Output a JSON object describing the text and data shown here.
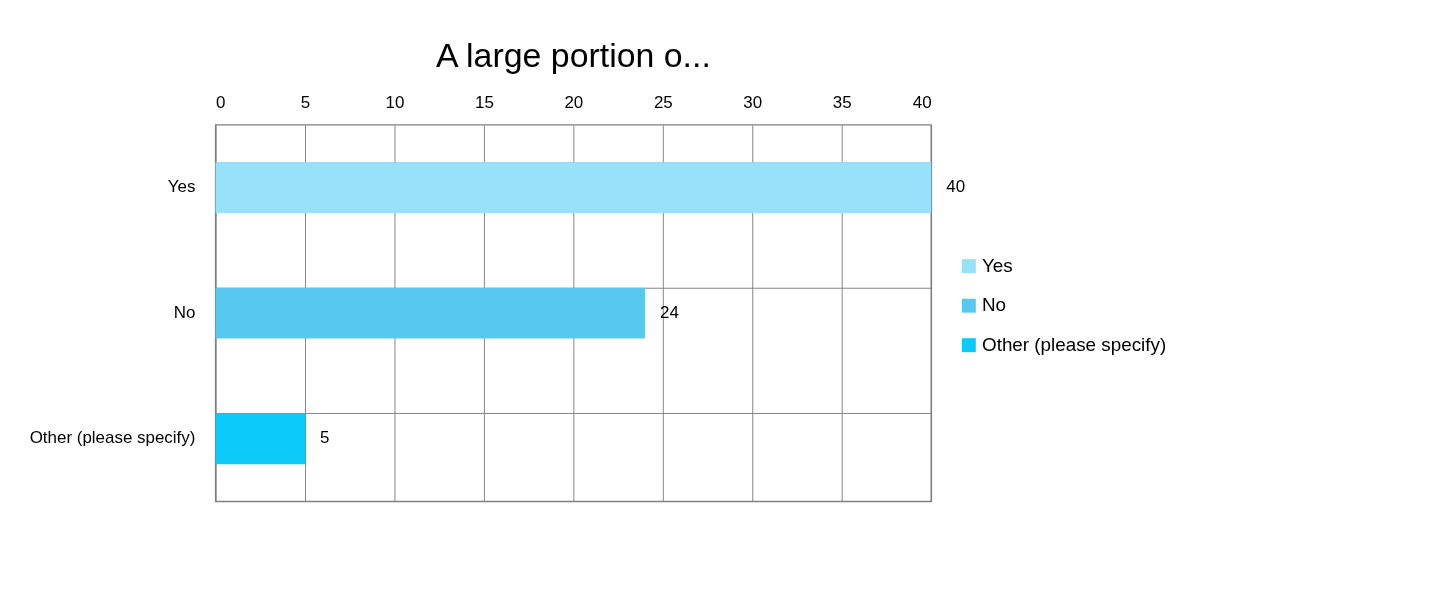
{
  "chart_data": {
    "type": "bar",
    "orientation": "horizontal",
    "title": "A large portion o...",
    "categories": [
      "Yes",
      "No",
      "Other (please specify)"
    ],
    "series": [
      {
        "name": "Yes",
        "color": "#97e1fb",
        "values": [
          40,
          null,
          null
        ]
      },
      {
        "name": "No",
        "color": "#57c9ef",
        "values": [
          null,
          24,
          null
        ]
      },
      {
        "name": "Other (please specify)",
        "color": "#0bc9f9",
        "values": [
          null,
          null,
          5
        ]
      }
    ],
    "xlim": [
      0,
      40
    ],
    "xticks": [
      0,
      5,
      10,
      15,
      20,
      25,
      30,
      35,
      40
    ],
    "grid": true,
    "legend": "right",
    "data_labels": true
  }
}
